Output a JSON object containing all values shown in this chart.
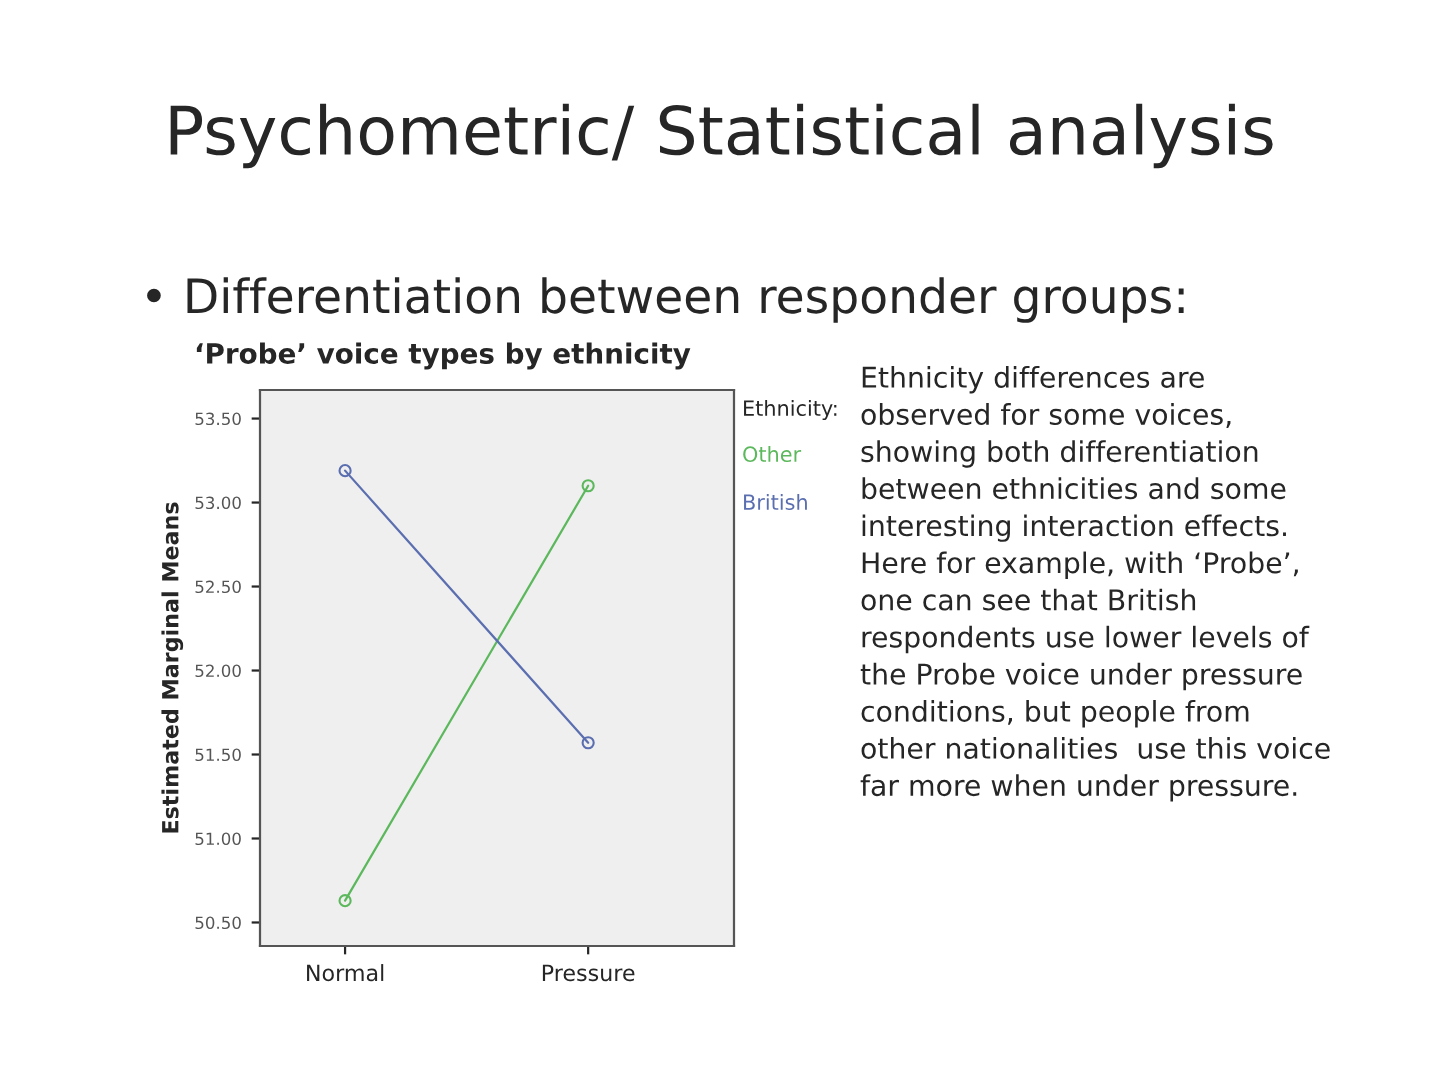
{
  "chart_data": {
    "type": "line",
    "title": "Psychometric/ Statistical analysis",
    "subtitle": "• Differentiation between responder groups:",
    "annotations": [
      "‘Probe’ voice types by ethnicity",
      "Ethnicity differences are\nobserved for some voices,\nshowing both differentiation\nbetween ethnicities and some\ninteresting interaction effects.\nHere for example, with ‘Probe’,\none can see that British\nrespondents use lower levels of\nthe Probe voice under pressure\nconditions, but people from\nother nationalities  use this voice\nfar more when under pressure."
    ],
    "categories": [
      "Normal",
      "Pressure"
    ],
    "ylabel": "Estimated Marginal Means",
    "legend_title": "Ethnicity:",
    "series": [
      {
        "name": "Other",
        "color": "#5cb85c",
        "values": [
          50.63,
          53.1
        ]
      },
      {
        "name": "British",
        "color": "#5b6fb0",
        "values": [
          53.19,
          51.57
        ]
      }
    ],
    "ylim": [
      50.36,
      53.67
    ],
    "yticks": [
      {
        "value": 50.5,
        "label": "50.50"
      },
      {
        "value": 51.0,
        "label": "51.00"
      },
      {
        "value": 51.5,
        "label": "51.50"
      },
      {
        "value": 52.0,
        "label": "52.00"
      },
      {
        "value": 52.5,
        "label": "52.50"
      },
      {
        "value": 53.0,
        "label": "53.00"
      },
      {
        "value": 53.5,
        "label": "53.50"
      }
    ],
    "marker": "circle",
    "grid": false,
    "legend": "right"
  }
}
